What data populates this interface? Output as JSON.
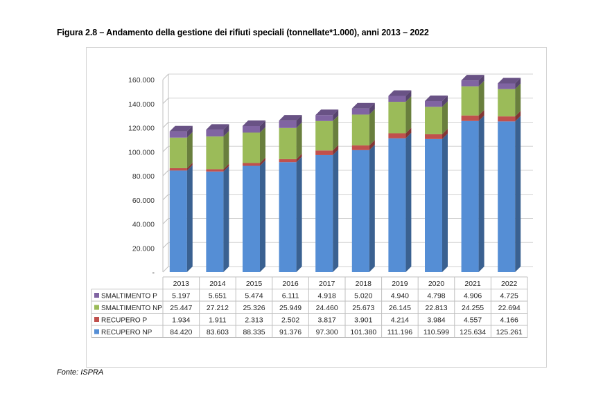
{
  "figure_title": "Figura 2.8 – Andamento della gestione dei rifiuti speciali (tonnellate*1.000), anni 2013 – 2022",
  "source": "Fonte: ISPRA",
  "chart_data": {
    "type": "bar",
    "stacked": true,
    "title": "",
    "xlabel": "",
    "ylabel": "",
    "ylim": [
      0,
      160000
    ],
    "y_ticks": [
      0,
      20000,
      40000,
      60000,
      80000,
      100000,
      120000,
      140000,
      160000
    ],
    "y_tick_labels": [
      "-",
      "20.000",
      "40.000",
      "60.000",
      "80.000",
      "100.000",
      "120.000",
      "140.000",
      "160.000"
    ],
    "grid": true,
    "legend": "data-table-below",
    "categories": [
      "2013",
      "2014",
      "2015",
      "2016",
      "2017",
      "2018",
      "2019",
      "2020",
      "2021",
      "2022"
    ],
    "series": [
      {
        "name": "RECUPERO NP",
        "color": "#558ed5",
        "values": [
          84420,
          83603,
          88335,
          91376,
          97300,
          101380,
          111196,
          110599,
          125634,
          125261
        ],
        "labels": [
          "84.420",
          "83.603",
          "88.335",
          "91.376",
          "97.300",
          "101.380",
          "111.196",
          "110.599",
          "125.634",
          "125.261"
        ]
      },
      {
        "name": "RECUPERO P",
        "color": "#c0504d",
        "values": [
          1934,
          1911,
          2313,
          2502,
          3817,
          3901,
          4214,
          3984,
          4557,
          4166
        ],
        "labels": [
          "1.934",
          "1.911",
          "2.313",
          "2.502",
          "3.817",
          "3.901",
          "4.214",
          "3.984",
          "4.557",
          "4.166"
        ]
      },
      {
        "name": "SMALTIMENTO NP",
        "color": "#9bbb59",
        "values": [
          25447,
          27212,
          25326,
          25949,
          24460,
          25673,
          26145,
          22813,
          24255,
          22694
        ],
        "labels": [
          "25.447",
          "27.212",
          "25.326",
          "25.949",
          "24.460",
          "25.673",
          "26.145",
          "22.813",
          "24.255",
          "22.694"
        ]
      },
      {
        "name": "SMALTIMENTO P",
        "color": "#8064a2",
        "values": [
          5197,
          5651,
          5474,
          6111,
          4918,
          5020,
          4940,
          4798,
          4906,
          4725
        ],
        "labels": [
          "5.197",
          "5.651",
          "5.474",
          "6.111",
          "4.918",
          "5.020",
          "4.940",
          "4.798",
          "4.906",
          "4.725"
        ]
      }
    ],
    "table_row_order": [
      "SMALTIMENTO P",
      "SMALTIMENTO NP",
      "RECUPERO P",
      "RECUPERO NP"
    ]
  }
}
